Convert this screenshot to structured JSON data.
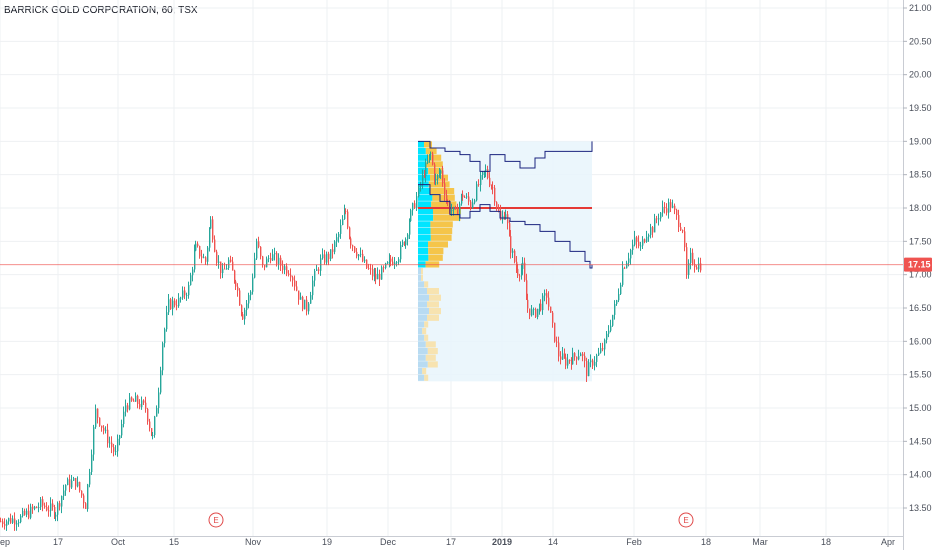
{
  "header": {
    "title": "BARRICK GOLD CORPORATION, 60, TSX"
  },
  "chart_data": {
    "type": "candlestick",
    "title": "BARRICK GOLD CORPORATION, 60, TSX",
    "symbol": "BARRICK GOLD CORPORATION",
    "interval": "60",
    "exchange": "TSX",
    "ylim": [
      13.25,
      21.05
    ],
    "y_ticks": [
      "21.00",
      "20.50",
      "20.00",
      "19.50",
      "19.00",
      "18.50",
      "18.00",
      "17.50",
      "17.00",
      "16.50",
      "16.00",
      "15.50",
      "15.00",
      "14.50",
      "14.00",
      "13.50"
    ],
    "x_ticks": [
      {
        "label": "ep",
        "t": 0,
        "bold": false
      },
      {
        "label": "17",
        "t": 58,
        "bold": false
      },
      {
        "label": "Oct",
        "t": 118,
        "bold": false
      },
      {
        "label": "15",
        "t": 174,
        "bold": false
      },
      {
        "label": "Nov",
        "t": 253,
        "bold": false
      },
      {
        "label": "19",
        "t": 327,
        "bold": false
      },
      {
        "label": "Dec",
        "t": 388,
        "bold": false
      },
      {
        "label": "17",
        "t": 451,
        "bold": false
      },
      {
        "label": "2019",
        "t": 502,
        "bold": true
      },
      {
        "label": "14",
        "t": 553,
        "bold": false
      },
      {
        "label": "Feb",
        "t": 634,
        "bold": false
      },
      {
        "label": "18",
        "t": 706,
        "bold": false
      },
      {
        "label": "Mar",
        "t": 760,
        "bold": false
      },
      {
        "label": "18",
        "t": 826,
        "bold": false
      },
      {
        "label": "Apr",
        "t": 888,
        "bold": false
      }
    ],
    "last_price": "17.15",
    "last_price_value": 17.15,
    "up_color": "#26a69a",
    "down_color": "#ef5350",
    "earnings_markers": [
      {
        "label": "E",
        "t": 216
      },
      {
        "label": "E",
        "t": 686
      }
    ],
    "price_path": [
      [
        0,
        13.3
      ],
      [
        20,
        13.35
      ],
      [
        40,
        13.55
      ],
      [
        55,
        13.45
      ],
      [
        65,
        13.85
      ],
      [
        75,
        13.9
      ],
      [
        85,
        13.55
      ],
      [
        95,
        14.95
      ],
      [
        105,
        14.6
      ],
      [
        115,
        14.3
      ],
      [
        125,
        15.05
      ],
      [
        135,
        15.1
      ],
      [
        145,
        15.0
      ],
      [
        152,
        14.55
      ],
      [
        158,
        15.3
      ],
      [
        162,
        16.0
      ],
      [
        168,
        16.55
      ],
      [
        178,
        16.6
      ],
      [
        188,
        16.8
      ],
      [
        195,
        17.4
      ],
      [
        205,
        17.2
      ],
      [
        210,
        17.8
      ],
      [
        216,
        17.25
      ],
      [
        222,
        17.0
      ],
      [
        228,
        17.2
      ],
      [
        235,
        16.9
      ],
      [
        242,
        16.4
      ],
      [
        250,
        16.75
      ],
      [
        256,
        17.5
      ],
      [
        262,
        17.1
      ],
      [
        270,
        17.3
      ],
      [
        280,
        17.15
      ],
      [
        290,
        17.05
      ],
      [
        300,
        16.6
      ],
      [
        306,
        16.5
      ],
      [
        312,
        16.9
      ],
      [
        320,
        17.2
      ],
      [
        330,
        17.3
      ],
      [
        338,
        17.6
      ],
      [
        345,
        17.95
      ],
      [
        350,
        17.5
      ],
      [
        358,
        17.3
      ],
      [
        366,
        17.1
      ],
      [
        375,
        16.95
      ],
      [
        383,
        17.05
      ],
      [
        390,
        17.2
      ],
      [
        398,
        17.3
      ],
      [
        405,
        17.55
      ],
      [
        410,
        17.9
      ],
      [
        418,
        18.25
      ],
      [
        425,
        18.6
      ],
      [
        430,
        18.8
      ],
      [
        435,
        18.4
      ],
      [
        440,
        18.55
      ],
      [
        447,
        18.05
      ],
      [
        455,
        17.9
      ],
      [
        462,
        18.2
      ],
      [
        470,
        18.05
      ],
      [
        478,
        18.35
      ],
      [
        485,
        18.55
      ],
      [
        492,
        18.3
      ],
      [
        500,
        17.8
      ],
      [
        505,
        17.95
      ],
      [
        510,
        17.4
      ],
      [
        517,
        17.05
      ],
      [
        522,
        17.1
      ],
      [
        527,
        16.5
      ],
      [
        533,
        16.4
      ],
      [
        540,
        16.55
      ],
      [
        546,
        16.7
      ],
      [
        552,
        16.2
      ],
      [
        558,
        15.8
      ],
      [
        565,
        15.7
      ],
      [
        572,
        15.75
      ],
      [
        580,
        15.85
      ],
      [
        586,
        15.55
      ],
      [
        592,
        15.7
      ],
      [
        598,
        15.8
      ],
      [
        604,
        15.95
      ],
      [
        610,
        16.3
      ],
      [
        616,
        16.6
      ],
      [
        622,
        17.1
      ],
      [
        628,
        17.3
      ],
      [
        634,
        17.5
      ],
      [
        640,
        17.4
      ],
      [
        646,
        17.65
      ],
      [
        652,
        17.7
      ],
      [
        658,
        17.9
      ],
      [
        664,
        18.0
      ],
      [
        670,
        18.05
      ],
      [
        676,
        17.85
      ],
      [
        682,
        17.7
      ],
      [
        686,
        16.95
      ],
      [
        690,
        17.25
      ],
      [
        696,
        17.15
      ],
      [
        702,
        17.15
      ]
    ],
    "volume_profile": {
      "range": [
        15.4,
        19.0
      ],
      "poc_price": 18.0,
      "value_area": [
        17.15,
        19.0
      ],
      "colors": {
        "up": "#00e5ff",
        "down": "#f5c54a",
        "up_outside": "#b8dbf2",
        "down_outside": "#f7e3b0",
        "background": "#e8f4fb",
        "poc": "#e53935"
      }
    },
    "developing_lines": {
      "color": "#1a237e",
      "upper_end": 19.0,
      "lower_end": 17.1
    }
  }
}
